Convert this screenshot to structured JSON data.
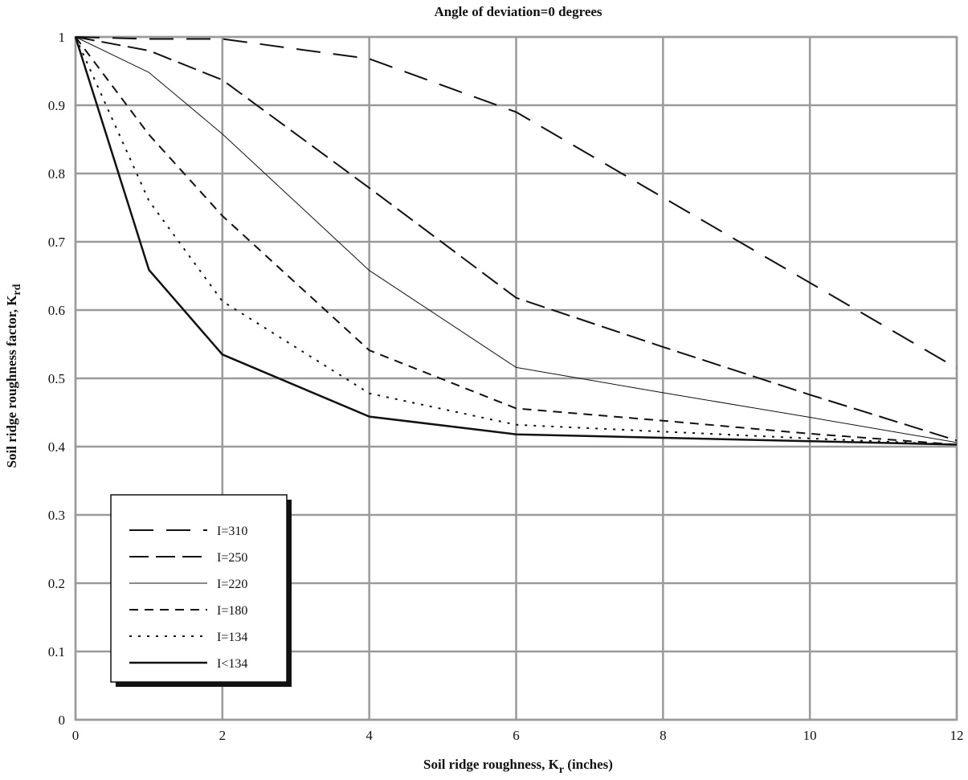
{
  "chart_data": {
    "type": "line",
    "title": "Angle of deviation=0 degrees",
    "xlabel": {
      "main": "Soil ridge roughness, K",
      "sub": "r",
      "tail": " (inches)"
    },
    "ylabel": {
      "main": "Soil ridge roughness factor, K",
      "sub": "rd"
    },
    "xlim": [
      0,
      12
    ],
    "ylim": [
      0,
      1
    ],
    "x_ticks": [
      0,
      2,
      4,
      6,
      8,
      10,
      12
    ],
    "x_tick_labels": [
      "0",
      "2",
      "4",
      "6",
      "8",
      "10",
      "12"
    ],
    "x_gridlines": [
      0,
      2,
      4,
      6,
      8,
      10,
      12
    ],
    "y_ticks": [
      0,
      0.1,
      0.2,
      0.3,
      0.4,
      0.5,
      0.6,
      0.7,
      0.8,
      0.9,
      1
    ],
    "y_tick_labels": [
      "0",
      "0.1",
      "0.2",
      "0.3",
      "0.4",
      "0.5",
      "0.6",
      "0.7",
      "0.8",
      "0.9",
      "1"
    ],
    "grid": true,
    "legend_position": "bottom-left",
    "series": [
      {
        "name": "I=310",
        "dash": "long",
        "width": 2,
        "x": [
          0,
          1,
          2,
          4,
          6,
          8,
          10,
          12
        ],
        "y": [
          1.0,
          0.997,
          0.997,
          0.968,
          0.89,
          0.765,
          0.64,
          0.515
        ]
      },
      {
        "name": "I=250",
        "dash": "medium",
        "width": 2,
        "x": [
          0,
          1,
          2,
          4,
          6,
          8,
          10,
          12
        ],
        "y": [
          1.0,
          0.98,
          0.937,
          0.779,
          0.618,
          0.546,
          0.476,
          0.409
        ]
      },
      {
        "name": "I=220",
        "dash": "solid-thin",
        "width": 1,
        "x": [
          0,
          1,
          2,
          4,
          6,
          8,
          10,
          12
        ],
        "y": [
          1.0,
          0.948,
          0.858,
          0.658,
          0.516,
          0.479,
          0.443,
          0.406
        ]
      },
      {
        "name": "I=180",
        "dash": "short",
        "width": 2,
        "x": [
          0,
          1,
          2,
          4,
          6,
          8,
          10,
          12
        ],
        "y": [
          1.0,
          0.857,
          0.738,
          0.541,
          0.456,
          0.438,
          0.419,
          0.403
        ]
      },
      {
        "name": "I=134",
        "dash": "dotted",
        "width": 2,
        "x": [
          0,
          1,
          2,
          4,
          6,
          8,
          10,
          12
        ],
        "y": [
          1.0,
          0.76,
          0.613,
          0.478,
          0.432,
          0.422,
          0.412,
          0.403
        ]
      },
      {
        "name": "I<134",
        "dash": "solid-thick",
        "width": 2.5,
        "x": [
          0,
          1,
          2,
          4,
          6,
          8,
          10,
          12
        ],
        "y": [
          1.0,
          0.659,
          0.535,
          0.444,
          0.418,
          0.413,
          0.408,
          0.403
        ]
      }
    ]
  }
}
